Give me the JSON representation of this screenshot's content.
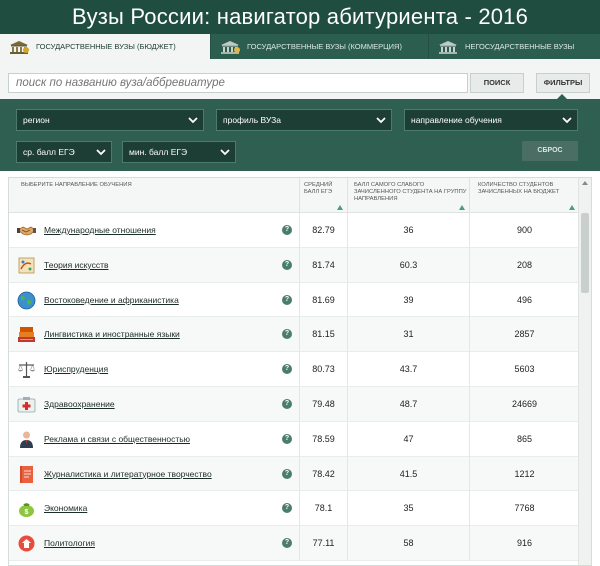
{
  "header": {
    "title": "Вузы России: навигатор абитуриента - 2016"
  },
  "tabs": [
    {
      "label": "Государственные вузы (бюджет)",
      "icon": "university-budget-icon",
      "active": true
    },
    {
      "label": "Государственные вузы (коммерция)",
      "icon": "university-commercial-icon",
      "active": false
    },
    {
      "label": "Негосударственные вузы",
      "icon": "university-private-icon",
      "active": false
    }
  ],
  "search": {
    "placeholder": "поиск по названию вуза/аббревиатуре",
    "button": "ПОИСК",
    "filters_button": "ФИЛЬТРЫ"
  },
  "filters": {
    "region": "регион",
    "profile": "профиль ВУЗа",
    "direction": "направление обучения",
    "avg_score": "ср. балл ЕГЭ",
    "min_score": "мин. балл ЕГЭ",
    "reset": "СБРОС"
  },
  "table": {
    "columns": {
      "name": "Выберите направление обучения",
      "avg": "Средний балл ЕГЭ",
      "low": "Балл самого слабого зачисленного студента на группу направления",
      "count": "Количество студентов зачисленных на бюджет"
    },
    "rows": [
      {
        "name": "Международные отношения",
        "icon": "handshake-icon",
        "avg": "82.79",
        "low": "36",
        "count": "900"
      },
      {
        "name": "Теория искусств",
        "icon": "paint-icon",
        "avg": "81.74",
        "low": "60.3",
        "count": "208"
      },
      {
        "name": "Востоковедение и африканистика",
        "icon": "globe-icon",
        "avg": "81.69",
        "low": "39",
        "count": "496"
      },
      {
        "name": "Лингвистика и иностранные языки",
        "icon": "books-icon",
        "avg": "81.15",
        "low": "31",
        "count": "2857"
      },
      {
        "name": "Юриспруденция",
        "icon": "scales-icon",
        "avg": "80.73",
        "low": "43.7",
        "count": "5603"
      },
      {
        "name": "Здравоохранение",
        "icon": "first-aid-icon",
        "avg": "79.48",
        "low": "48.7",
        "count": "24669"
      },
      {
        "name": "Реклама и связи с общественностью",
        "icon": "person-icon",
        "avg": "78.59",
        "low": "47",
        "count": "865"
      },
      {
        "name": "Журналистика и литературное творчество",
        "icon": "notebook-icon",
        "avg": "78.42",
        "low": "41.5",
        "count": "1212"
      },
      {
        "name": "Экономика",
        "icon": "money-bag-icon",
        "avg": "78.1",
        "low": "35",
        "count": "7768"
      },
      {
        "name": "Политология",
        "icon": "politics-icon",
        "avg": "77.11",
        "low": "58",
        "count": "916"
      }
    ]
  },
  "colors": {
    "header_bg": "#1f4d3f",
    "tabs_bg": "#2c5e4f",
    "filters_bg": "#2f5f51",
    "accent": "#4b7d6f"
  }
}
